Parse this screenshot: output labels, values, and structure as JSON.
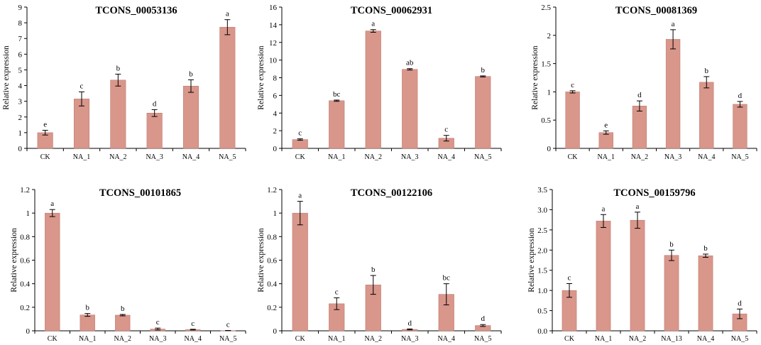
{
  "figure": {
    "colors": {
      "bar": "#d9968a",
      "bar_edge": "#b8766a",
      "axis": "#000000",
      "error": "#000000"
    }
  },
  "chart_data": [
    {
      "type": "bar",
      "title": "TCONS_00053136",
      "ylabel": "Relative expression",
      "xlabel": "",
      "categories": [
        "CK",
        "NA_1",
        "NA_2",
        "NA_3",
        "NA_4",
        "NA_5"
      ],
      "values": [
        1.0,
        3.15,
        4.35,
        2.25,
        3.97,
        7.72
      ],
      "errors": [
        0.15,
        0.45,
        0.38,
        0.22,
        0.4,
        0.48
      ],
      "significance": [
        "e",
        "c",
        "b",
        "d",
        "b",
        "a"
      ],
      "ylim": [
        0,
        9
      ],
      "yticks": [
        "0",
        "1",
        "2",
        "3",
        "4",
        "5",
        "6",
        "7",
        "8",
        "9"
      ],
      "grid": false
    },
    {
      "type": "bar",
      "title": "TCONS_00062931",
      "ylabel": "Relative expression",
      "xlabel": "",
      "categories": [
        "CK",
        "NA_1",
        "NA_2",
        "NA_3",
        "NA_4",
        "NA_5"
      ],
      "values": [
        1.0,
        5.4,
        13.3,
        8.95,
        1.15,
        8.15
      ],
      "errors": [
        0.08,
        0.07,
        0.15,
        0.08,
        0.32,
        0.06
      ],
      "significance": [
        "c",
        "bc",
        "a",
        "ab",
        "c",
        "b"
      ],
      "ylim": [
        0,
        16
      ],
      "yticks": [
        "0",
        "2",
        "4",
        "6",
        "8",
        "10",
        "12",
        "14",
        "16"
      ],
      "grid": false
    },
    {
      "type": "bar",
      "title": "TCONS_00081369",
      "ylabel": "Relative expression",
      "xlabel": "",
      "categories": [
        "CK",
        "NA_1",
        "NA_2",
        "NA_3",
        "NA_4",
        "NA_5"
      ],
      "values": [
        1.0,
        0.28,
        0.75,
        1.93,
        1.17,
        0.78
      ],
      "errors": [
        0.02,
        0.03,
        0.09,
        0.17,
        0.1,
        0.05
      ],
      "significance": [
        "c",
        "e",
        "d",
        "a",
        "b",
        "d"
      ],
      "ylim": [
        0,
        2.5
      ],
      "yticks": [
        "0",
        "0.5",
        "1",
        "1.5",
        "2",
        "2.5"
      ],
      "grid": false
    },
    {
      "type": "bar",
      "title": "TCONS_00101865",
      "ylabel": "Relative expression",
      "xlabel": "",
      "categories": [
        "CK",
        "NA_1",
        "NA_2",
        "NA_3",
        "NA_4",
        "NA_5"
      ],
      "values": [
        1.0,
        0.135,
        0.133,
        0.015,
        0.01,
        0.002
      ],
      "errors": [
        0.03,
        0.012,
        0.006,
        0.008,
        0.003,
        0.001
      ],
      "significance": [
        "a",
        "b",
        "b",
        "c",
        "c",
        "c"
      ],
      "ylim": [
        0,
        1.2
      ],
      "yticks": [
        "0",
        "0.2",
        "0.4",
        "0.6",
        "0.8",
        "1",
        "1.2"
      ],
      "grid": false
    },
    {
      "type": "bar",
      "title": "TCONS_00122106",
      "ylabel": "Relative expression",
      "xlabel": "",
      "categories": [
        "CK",
        "NA_1",
        "NA_2",
        "NA_3",
        "NA_4",
        "NA_5"
      ],
      "values": [
        1.0,
        0.23,
        0.39,
        0.012,
        0.31,
        0.045
      ],
      "errors": [
        0.1,
        0.05,
        0.08,
        0.004,
        0.09,
        0.008
      ],
      "significance": [
        "a",
        "c",
        "b",
        "d",
        "bc",
        "d"
      ],
      "ylim": [
        0,
        1.2
      ],
      "yticks": [
        "0",
        "0.2",
        "0.4",
        "0.6",
        "0.8",
        "1",
        "1.2"
      ],
      "grid": false
    },
    {
      "type": "bar",
      "title": "TCONS_00159796",
      "ylabel": "Relative expression",
      "xlabel": "",
      "categories": [
        "CK",
        "NA_1",
        "NA_2",
        "NA_13",
        "NA_4",
        "NA_5"
      ],
      "values": [
        1.0,
        2.72,
        2.74,
        1.87,
        1.86,
        0.42
      ],
      "errors": [
        0.17,
        0.16,
        0.2,
        0.13,
        0.04,
        0.12
      ],
      "significance": [
        "c",
        "a",
        "a",
        "b",
        "b",
        "d"
      ],
      "ylim": [
        0,
        3.5
      ],
      "yticks": [
        "0.0",
        "0.5",
        "1.0",
        "1.5",
        "2.0",
        "2.5",
        "3.0",
        "3.5"
      ],
      "grid": false
    }
  ]
}
